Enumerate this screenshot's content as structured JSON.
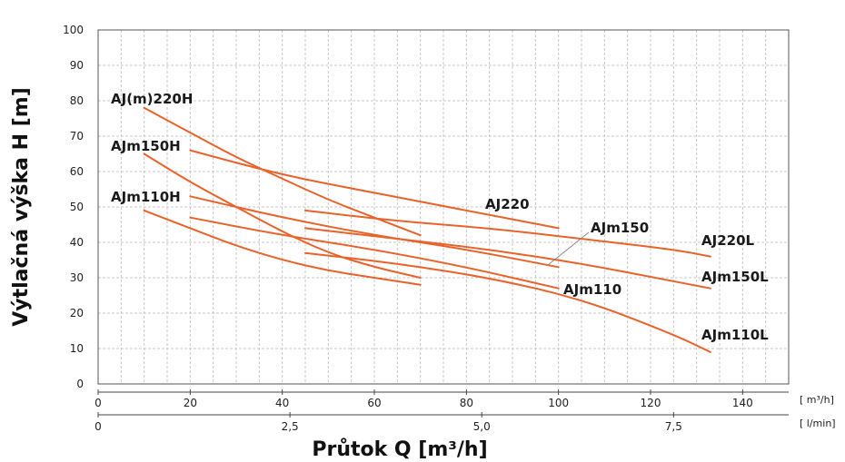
{
  "chart_data": {
    "type": "line",
    "xlabel": "Průtok Q [m³/h]",
    "ylabel": "Výtlačná výška H [m]",
    "ylim": [
      0,
      100
    ],
    "xlim": [
      0,
      150
    ],
    "grid": true,
    "y_ticks": [
      "0",
      "10",
      "20",
      "30",
      "40",
      "50",
      "60",
      "70",
      "80",
      "90",
      "100"
    ],
    "x_ticks_lmin": [
      "0",
      "20",
      "40",
      "60",
      "80",
      "100",
      "120",
      "140"
    ],
    "x_ticks_m3h": [
      "0",
      "2,5",
      "5,0",
      "7,5"
    ],
    "unit_top": "[ m³/h]",
    "unit_bottom": "[ l/min]",
    "line_color": "#e8622a",
    "series": [
      {
        "name": "AJ(m)220H",
        "x": [
          10,
          20,
          30,
          40,
          50,
          60,
          70
        ],
        "y": [
          78,
          71,
          64,
          58,
          52,
          47,
          42
        ]
      },
      {
        "name": "AJm150H",
        "x": [
          10,
          20,
          30,
          40,
          50,
          60,
          70
        ],
        "y": [
          65,
          57,
          50,
          43,
          37,
          33,
          30
        ]
      },
      {
        "name": "AJm110H",
        "x": [
          10,
          20,
          30,
          40,
          50,
          60,
          70
        ],
        "y": [
          49,
          44,
          39,
          35,
          32,
          30,
          28
        ]
      },
      {
        "name": "AJ220",
        "x": [
          20,
          40,
          60,
          80,
          100
        ],
        "y": [
          66,
          59,
          54,
          49,
          44
        ]
      },
      {
        "name": "AJm150",
        "x": [
          20,
          40,
          60,
          80,
          100
        ],
        "y": [
          53,
          47,
          42,
          38,
          33
        ]
      },
      {
        "name": "AJm110",
        "x": [
          20,
          40,
          60,
          80,
          100
        ],
        "y": [
          47,
          42,
          38,
          33,
          27
        ]
      },
      {
        "name": "AJ220L",
        "x": [
          45,
          65,
          85,
          105,
          125,
          133
        ],
        "y": [
          49,
          46,
          44,
          41,
          38,
          36
        ]
      },
      {
        "name": "AJm150L",
        "x": [
          45,
          65,
          85,
          105,
          125,
          133
        ],
        "y": [
          44,
          41,
          38,
          34,
          29,
          27
        ]
      },
      {
        "name": "AJm110L",
        "x": [
          45,
          65,
          85,
          105,
          125,
          133
        ],
        "y": [
          37,
          34,
          30,
          24,
          14,
          9
        ]
      }
    ]
  }
}
